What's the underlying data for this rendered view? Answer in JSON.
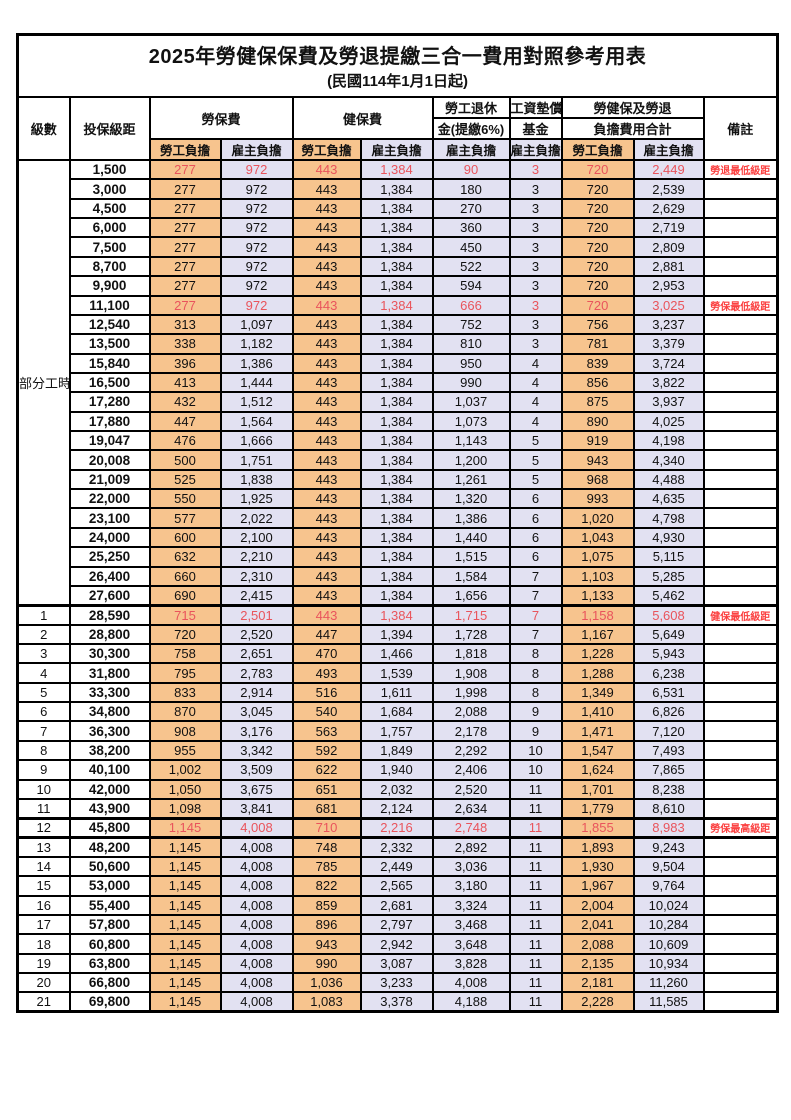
{
  "title": "2025年勞健保保費及勞退提繳三合一費用對照參考用表",
  "subtitle": "(民國114年1月1日起)",
  "colors": {
    "worker_bg": "#F7C48E",
    "employer_bg": "#E2E1F2",
    "highlight_text": "#E9545C",
    "remark_text": "#FB4040",
    "border": "#000000"
  },
  "header": {
    "level": "級數",
    "salary": "投保級距",
    "labor_ins": "勞保費",
    "health_ins": "健保費",
    "pension_line1": "勞工退休",
    "pension_line2": "金(提繳6%)",
    "wage_fund_line1": "工資墊償",
    "wage_fund_line2": "基金",
    "total_line1": "勞健保及勞退",
    "total_line2": "負擔費用合計",
    "worker": "勞工負擔",
    "employer": "雇主負擔",
    "remark": "備註"
  },
  "part_time": {
    "label": "部分工時",
    "rowspan": 23
  },
  "rows": [
    {
      "level": "",
      "salary": "1,500",
      "labor_w": "277",
      "labor_e": "972",
      "health_w": "443",
      "health_e": "1,384",
      "pension_e": "90",
      "fund_e": "3",
      "total_w": "720",
      "total_e": "2,449",
      "remark": "勞退最低級距",
      "highlight": true,
      "thick": false
    },
    {
      "level": "",
      "salary": "3,000",
      "labor_w": "277",
      "labor_e": "972",
      "health_w": "443",
      "health_e": "1,384",
      "pension_e": "180",
      "fund_e": "3",
      "total_w": "720",
      "total_e": "2,539",
      "remark": "",
      "highlight": false,
      "thick": false
    },
    {
      "level": "",
      "salary": "4,500",
      "labor_w": "277",
      "labor_e": "972",
      "health_w": "443",
      "health_e": "1,384",
      "pension_e": "270",
      "fund_e": "3",
      "total_w": "720",
      "total_e": "2,629",
      "remark": "",
      "highlight": false,
      "thick": false
    },
    {
      "level": "",
      "salary": "6,000",
      "labor_w": "277",
      "labor_e": "972",
      "health_w": "443",
      "health_e": "1,384",
      "pension_e": "360",
      "fund_e": "3",
      "total_w": "720",
      "total_e": "2,719",
      "remark": "",
      "highlight": false,
      "thick": false
    },
    {
      "level": "",
      "salary": "7,500",
      "labor_w": "277",
      "labor_e": "972",
      "health_w": "443",
      "health_e": "1,384",
      "pension_e": "450",
      "fund_e": "3",
      "total_w": "720",
      "total_e": "2,809",
      "remark": "",
      "highlight": false,
      "thick": false
    },
    {
      "level": "",
      "salary": "8,700",
      "labor_w": "277",
      "labor_e": "972",
      "health_w": "443",
      "health_e": "1,384",
      "pension_e": "522",
      "fund_e": "3",
      "total_w": "720",
      "total_e": "2,881",
      "remark": "",
      "highlight": false,
      "thick": false
    },
    {
      "level": "",
      "salary": "9,900",
      "labor_w": "277",
      "labor_e": "972",
      "health_w": "443",
      "health_e": "1,384",
      "pension_e": "594",
      "fund_e": "3",
      "total_w": "720",
      "total_e": "2,953",
      "remark": "",
      "highlight": false,
      "thick": false
    },
    {
      "level": "",
      "salary": "11,100",
      "labor_w": "277",
      "labor_e": "972",
      "health_w": "443",
      "health_e": "1,384",
      "pension_e": "666",
      "fund_e": "3",
      "total_w": "720",
      "total_e": "3,025",
      "remark": "勞保最低級距",
      "highlight": true,
      "thick": false
    },
    {
      "level": "",
      "salary": "12,540",
      "labor_w": "313",
      "labor_e": "1,097",
      "health_w": "443",
      "health_e": "1,384",
      "pension_e": "752",
      "fund_e": "3",
      "total_w": "756",
      "total_e": "3,237",
      "remark": "",
      "highlight": false,
      "thick": false
    },
    {
      "level": "",
      "salary": "13,500",
      "labor_w": "338",
      "labor_e": "1,182",
      "health_w": "443",
      "health_e": "1,384",
      "pension_e": "810",
      "fund_e": "3",
      "total_w": "781",
      "total_e": "3,379",
      "remark": "",
      "highlight": false,
      "thick": false
    },
    {
      "level": "",
      "salary": "15,840",
      "labor_w": "396",
      "labor_e": "1,386",
      "health_w": "443",
      "health_e": "1,384",
      "pension_e": "950",
      "fund_e": "4",
      "total_w": "839",
      "total_e": "3,724",
      "remark": "",
      "highlight": false,
      "thick": false
    },
    {
      "level": "",
      "salary": "16,500",
      "labor_w": "413",
      "labor_e": "1,444",
      "health_w": "443",
      "health_e": "1,384",
      "pension_e": "990",
      "fund_e": "4",
      "total_w": "856",
      "total_e": "3,822",
      "remark": "",
      "highlight": false,
      "thick": false
    },
    {
      "level": "",
      "salary": "17,280",
      "labor_w": "432",
      "labor_e": "1,512",
      "health_w": "443",
      "health_e": "1,384",
      "pension_e": "1,037",
      "fund_e": "4",
      "total_w": "875",
      "total_e": "3,937",
      "remark": "",
      "highlight": false,
      "thick": false
    },
    {
      "level": "",
      "salary": "17,880",
      "labor_w": "447",
      "labor_e": "1,564",
      "health_w": "443",
      "health_e": "1,384",
      "pension_e": "1,073",
      "fund_e": "4",
      "total_w": "890",
      "total_e": "4,025",
      "remark": "",
      "highlight": false,
      "thick": false
    },
    {
      "level": "",
      "salary": "19,047",
      "labor_w": "476",
      "labor_e": "1,666",
      "health_w": "443",
      "health_e": "1,384",
      "pension_e": "1,143",
      "fund_e": "5",
      "total_w": "919",
      "total_e": "4,198",
      "remark": "",
      "highlight": false,
      "thick": false
    },
    {
      "level": "",
      "salary": "20,008",
      "labor_w": "500",
      "labor_e": "1,751",
      "health_w": "443",
      "health_e": "1,384",
      "pension_e": "1,200",
      "fund_e": "5",
      "total_w": "943",
      "total_e": "4,340",
      "remark": "",
      "highlight": false,
      "thick": false
    },
    {
      "level": "",
      "salary": "21,009",
      "labor_w": "525",
      "labor_e": "1,838",
      "health_w": "443",
      "health_e": "1,384",
      "pension_e": "1,261",
      "fund_e": "5",
      "total_w": "968",
      "total_e": "4,488",
      "remark": "",
      "highlight": false,
      "thick": false
    },
    {
      "level": "",
      "salary": "22,000",
      "labor_w": "550",
      "labor_e": "1,925",
      "health_w": "443",
      "health_e": "1,384",
      "pension_e": "1,320",
      "fund_e": "6",
      "total_w": "993",
      "total_e": "4,635",
      "remark": "",
      "highlight": false,
      "thick": false
    },
    {
      "level": "",
      "salary": "23,100",
      "labor_w": "577",
      "labor_e": "2,022",
      "health_w": "443",
      "health_e": "1,384",
      "pension_e": "1,386",
      "fund_e": "6",
      "total_w": "1,020",
      "total_e": "4,798",
      "remark": "",
      "highlight": false,
      "thick": false
    },
    {
      "level": "",
      "salary": "24,000",
      "labor_w": "600",
      "labor_e": "2,100",
      "health_w": "443",
      "health_e": "1,384",
      "pension_e": "1,440",
      "fund_e": "6",
      "total_w": "1,043",
      "total_e": "4,930",
      "remark": "",
      "highlight": false,
      "thick": false
    },
    {
      "level": "",
      "salary": "25,250",
      "labor_w": "632",
      "labor_e": "2,210",
      "health_w": "443",
      "health_e": "1,384",
      "pension_e": "1,515",
      "fund_e": "6",
      "total_w": "1,075",
      "total_e": "5,115",
      "remark": "",
      "highlight": false,
      "thick": false
    },
    {
      "level": "",
      "salary": "26,400",
      "labor_w": "660",
      "labor_e": "2,310",
      "health_w": "443",
      "health_e": "1,384",
      "pension_e": "1,584",
      "fund_e": "7",
      "total_w": "1,103",
      "total_e": "5,285",
      "remark": "",
      "highlight": false,
      "thick": false
    },
    {
      "level": "",
      "salary": "27,600",
      "labor_w": "690",
      "labor_e": "2,415",
      "health_w": "443",
      "health_e": "1,384",
      "pension_e": "1,656",
      "fund_e": "7",
      "total_w": "1,133",
      "total_e": "5,462",
      "remark": "",
      "highlight": false,
      "thick": false
    },
    {
      "level": "1",
      "salary": "28,590",
      "labor_w": "715",
      "labor_e": "2,501",
      "health_w": "443",
      "health_e": "1,384",
      "pension_e": "1,715",
      "fund_e": "7",
      "total_w": "1,158",
      "total_e": "5,608",
      "remark": "健保最低級距",
      "highlight": true,
      "thick": true
    },
    {
      "level": "2",
      "salary": "28,800",
      "labor_w": "720",
      "labor_e": "2,520",
      "health_w": "447",
      "health_e": "1,394",
      "pension_e": "1,728",
      "fund_e": "7",
      "total_w": "1,167",
      "total_e": "5,649",
      "remark": "",
      "highlight": false,
      "thick": false
    },
    {
      "level": "3",
      "salary": "30,300",
      "labor_w": "758",
      "labor_e": "2,651",
      "health_w": "470",
      "health_e": "1,466",
      "pension_e": "1,818",
      "fund_e": "8",
      "total_w": "1,228",
      "total_e": "5,943",
      "remark": "",
      "highlight": false,
      "thick": false
    },
    {
      "level": "4",
      "salary": "31,800",
      "labor_w": "795",
      "labor_e": "2,783",
      "health_w": "493",
      "health_e": "1,539",
      "pension_e": "1,908",
      "fund_e": "8",
      "total_w": "1,288",
      "total_e": "6,238",
      "remark": "",
      "highlight": false,
      "thick": false
    },
    {
      "level": "5",
      "salary": "33,300",
      "labor_w": "833",
      "labor_e": "2,914",
      "health_w": "516",
      "health_e": "1,611",
      "pension_e": "1,998",
      "fund_e": "8",
      "total_w": "1,349",
      "total_e": "6,531",
      "remark": "",
      "highlight": false,
      "thick": false
    },
    {
      "level": "6",
      "salary": "34,800",
      "labor_w": "870",
      "labor_e": "3,045",
      "health_w": "540",
      "health_e": "1,684",
      "pension_e": "2,088",
      "fund_e": "9",
      "total_w": "1,410",
      "total_e": "6,826",
      "remark": "",
      "highlight": false,
      "thick": false
    },
    {
      "level": "7",
      "salary": "36,300",
      "labor_w": "908",
      "labor_e": "3,176",
      "health_w": "563",
      "health_e": "1,757",
      "pension_e": "2,178",
      "fund_e": "9",
      "total_w": "1,471",
      "total_e": "7,120",
      "remark": "",
      "highlight": false,
      "thick": false
    },
    {
      "level": "8",
      "salary": "38,200",
      "labor_w": "955",
      "labor_e": "3,342",
      "health_w": "592",
      "health_e": "1,849",
      "pension_e": "2,292",
      "fund_e": "10",
      "total_w": "1,547",
      "total_e": "7,493",
      "remark": "",
      "highlight": false,
      "thick": false
    },
    {
      "level": "9",
      "salary": "40,100",
      "labor_w": "1,002",
      "labor_e": "3,509",
      "health_w": "622",
      "health_e": "1,940",
      "pension_e": "2,406",
      "fund_e": "10",
      "total_w": "1,624",
      "total_e": "7,865",
      "remark": "",
      "highlight": false,
      "thick": false
    },
    {
      "level": "10",
      "salary": "42,000",
      "labor_w": "1,050",
      "labor_e": "3,675",
      "health_w": "651",
      "health_e": "2,032",
      "pension_e": "2,520",
      "fund_e": "11",
      "total_w": "1,701",
      "total_e": "8,238",
      "remark": "",
      "highlight": false,
      "thick": false
    },
    {
      "level": "11",
      "salary": "43,900",
      "labor_w": "1,098",
      "labor_e": "3,841",
      "health_w": "681",
      "health_e": "2,124",
      "pension_e": "2,634",
      "fund_e": "11",
      "total_w": "1,779",
      "total_e": "8,610",
      "remark": "",
      "highlight": false,
      "thick": false
    },
    {
      "level": "12",
      "salary": "45,800",
      "labor_w": "1,145",
      "labor_e": "4,008",
      "health_w": "710",
      "health_e": "2,216",
      "pension_e": "2,748",
      "fund_e": "11",
      "total_w": "1,855",
      "total_e": "8,983",
      "remark": "勞保最高級距",
      "highlight": true,
      "thick": true
    },
    {
      "level": "13",
      "salary": "48,200",
      "labor_w": "1,145",
      "labor_e": "4,008",
      "health_w": "748",
      "health_e": "2,332",
      "pension_e": "2,892",
      "fund_e": "11",
      "total_w": "1,893",
      "total_e": "9,243",
      "remark": "",
      "highlight": false,
      "thick": true
    },
    {
      "level": "14",
      "salary": "50,600",
      "labor_w": "1,145",
      "labor_e": "4,008",
      "health_w": "785",
      "health_e": "2,449",
      "pension_e": "3,036",
      "fund_e": "11",
      "total_w": "1,930",
      "total_e": "9,504",
      "remark": "",
      "highlight": false,
      "thick": false
    },
    {
      "level": "15",
      "salary": "53,000",
      "labor_w": "1,145",
      "labor_e": "4,008",
      "health_w": "822",
      "health_e": "2,565",
      "pension_e": "3,180",
      "fund_e": "11",
      "total_w": "1,967",
      "total_e": "9,764",
      "remark": "",
      "highlight": false,
      "thick": false
    },
    {
      "level": "16",
      "salary": "55,400",
      "labor_w": "1,145",
      "labor_e": "4,008",
      "health_w": "859",
      "health_e": "2,681",
      "pension_e": "3,324",
      "fund_e": "11",
      "total_w": "2,004",
      "total_e": "10,024",
      "remark": "",
      "highlight": false,
      "thick": false
    },
    {
      "level": "17",
      "salary": "57,800",
      "labor_w": "1,145",
      "labor_e": "4,008",
      "health_w": "896",
      "health_e": "2,797",
      "pension_e": "3,468",
      "fund_e": "11",
      "total_w": "2,041",
      "total_e": "10,284",
      "remark": "",
      "highlight": false,
      "thick": false
    },
    {
      "level": "18",
      "salary": "60,800",
      "labor_w": "1,145",
      "labor_e": "4,008",
      "health_w": "943",
      "health_e": "2,942",
      "pension_e": "3,648",
      "fund_e": "11",
      "total_w": "2,088",
      "total_e": "10,609",
      "remark": "",
      "highlight": false,
      "thick": false
    },
    {
      "level": "19",
      "salary": "63,800",
      "labor_w": "1,145",
      "labor_e": "4,008",
      "health_w": "990",
      "health_e": "3,087",
      "pension_e": "3,828",
      "fund_e": "11",
      "total_w": "2,135",
      "total_e": "10,934",
      "remark": "",
      "highlight": false,
      "thick": false
    },
    {
      "level": "20",
      "salary": "66,800",
      "labor_w": "1,145",
      "labor_e": "4,008",
      "health_w": "1,036",
      "health_e": "3,233",
      "pension_e": "4,008",
      "fund_e": "11",
      "total_w": "2,181",
      "total_e": "11,260",
      "remark": "",
      "highlight": false,
      "thick": false
    },
    {
      "level": "21",
      "salary": "69,800",
      "labor_w": "1,145",
      "labor_e": "4,008",
      "health_w": "1,083",
      "health_e": "3,378",
      "pension_e": "4,188",
      "fund_e": "11",
      "total_w": "2,228",
      "total_e": "11,585",
      "remark": "",
      "highlight": false,
      "thick": false
    }
  ]
}
